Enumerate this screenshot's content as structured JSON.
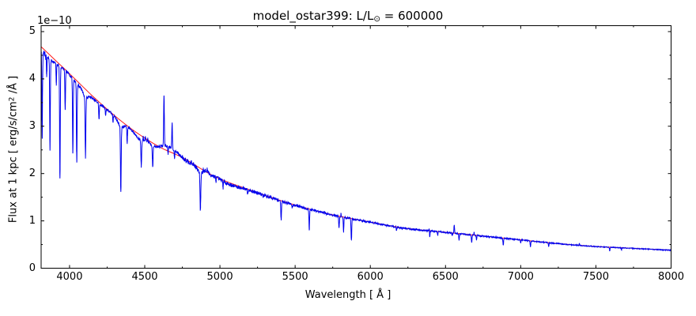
{
  "figure": {
    "background": "#ffffff"
  },
  "chart_data": {
    "type": "line",
    "title_parts": [
      "model_ostar399: L/L",
      "⊙",
      " = 600000"
    ],
    "xlabel": "Wavelength [ Å ]",
    "ylabel_parts": [
      "Flux at 1 kpc [ erg/s/cm",
      "2",
      " /Å ]"
    ],
    "y_offset_label": "1e−10",
    "xlim": [
      3811,
      8000
    ],
    "ylim": [
      0,
      5.125
    ],
    "xticks": [
      4000,
      4500,
      5000,
      5500,
      6000,
      6500,
      7000,
      7500,
      8000
    ],
    "yticks": [
      0,
      1,
      2,
      3,
      4,
      5
    ],
    "x_minor_ticks": [
      4250,
      4750,
      5250,
      5750,
      6250,
      6750,
      7250,
      7750
    ],
    "y_minor_ticks": [
      0.5,
      1.5,
      2.5,
      3.5,
      4.5
    ],
    "grid": false,
    "legend": null,
    "axes": {
      "spine_color": "#000000",
      "tick_color": "#000000",
      "text_color": "#000000",
      "tick_major_len": 4,
      "tick_minor_len": 2
    },
    "series": [
      {
        "name": "model spectrum",
        "color": "#0000ee",
        "width": 1.0
      },
      {
        "name": "continuum fit",
        "color": "#ff1a1a",
        "width": 1.0
      }
    ],
    "flux_unit_scale": "1e-10",
    "continuum_points": [
      [
        3811,
        4.68
      ],
      [
        4000,
        4.11
      ],
      [
        4200,
        3.5
      ],
      [
        4400,
        2.97
      ],
      [
        4600,
        2.56
      ],
      [
        4750,
        2.34
      ],
      [
        4958,
        1.95
      ],
      [
        5221,
        1.63
      ],
      [
        5484,
        1.35
      ],
      [
        5747,
        1.13
      ],
      [
        6010,
        0.97
      ],
      [
        6220,
        0.85
      ],
      [
        6500,
        0.76
      ],
      [
        6750,
        0.68
      ],
      [
        7000,
        0.6
      ],
      [
        7250,
        0.52
      ],
      [
        7500,
        0.46
      ],
      [
        7750,
        0.42
      ],
      [
        8000,
        0.38
      ]
    ],
    "absorption_lines": [
      [
        3818,
        1.75,
        2.2
      ],
      [
        3848,
        0.35,
        1.8
      ],
      [
        3870,
        1.91,
        2.2
      ],
      [
        3912,
        0.45,
        1.8
      ],
      [
        3936,
        2.39,
        2.2
      ],
      [
        3971,
        0.83,
        2.2
      ],
      [
        4022,
        1.58,
        2.2
      ],
      [
        4048,
        1.66,
        2.2
      ],
      [
        4106,
        1.27,
        2.4
      ],
      [
        4196,
        0.34,
        2.2
      ],
      [
        4240,
        0.15,
        1.8
      ],
      [
        4289,
        0.15,
        1.8
      ],
      [
        4341,
        1.38,
        2.4
      ],
      [
        4383,
        0.35,
        2.0
      ],
      [
        4477,
        0.55,
        2.4
      ],
      [
        4553,
        0.45,
        2.4
      ],
      [
        4655,
        0.15,
        1.8
      ],
      [
        4698,
        0.18,
        1.8
      ],
      [
        4870,
        0.78,
        2.6
      ],
      [
        4973,
        0.08,
        1.8
      ],
      [
        5021,
        0.14,
        1.8
      ],
      [
        5184,
        0.09,
        1.8
      ],
      [
        5288,
        0.06,
        1.8
      ],
      [
        5407,
        0.41,
        2.2
      ],
      [
        5480,
        0.06,
        1.8
      ],
      [
        5594,
        0.42,
        2.2
      ],
      [
        5792,
        0.25,
        2.0
      ],
      [
        5822,
        0.3,
        2.0
      ],
      [
        5874,
        0.46,
        2.3
      ],
      [
        6174,
        0.08,
        1.8
      ],
      [
        6395,
        0.13,
        1.9
      ],
      [
        6448,
        0.08,
        1.8
      ],
      [
        6545,
        0.05,
        1.8
      ],
      [
        6590,
        0.13,
        1.9
      ],
      [
        6674,
        0.16,
        2.0
      ],
      [
        6706,
        0.1,
        1.9
      ],
      [
        6884,
        0.15,
        2.0
      ],
      [
        7000,
        0.06,
        1.8
      ],
      [
        7065,
        0.12,
        2.0
      ],
      [
        7186,
        0.08,
        1.9
      ],
      [
        7592,
        0.08,
        1.9
      ],
      [
        7670,
        0.05,
        1.8
      ]
    ],
    "emission_lines": [
      [
        4490,
        0.09,
        1.6
      ],
      [
        4504,
        0.11,
        1.6
      ],
      [
        4520,
        0.07,
        1.6
      ],
      [
        4628,
        1.06,
        2.2
      ],
      [
        4682,
        0.55,
        2.2
      ],
      [
        4889,
        0.06,
        1.8
      ],
      [
        4916,
        0.06,
        1.8
      ],
      [
        5694,
        0.03,
        1.6
      ],
      [
        5805,
        0.06,
        1.6
      ],
      [
        6392,
        0.06,
        1.6
      ],
      [
        6558,
        0.17,
        2.2
      ],
      [
        6690,
        0.06,
        1.6
      ],
      [
        7390,
        0.04,
        1.6
      ]
    ],
    "broad_absorption": [
      [
        3830,
        0.05,
        30
      ],
      [
        3880,
        0.06,
        45
      ],
      [
        4060,
        0.05,
        35
      ],
      [
        4106,
        0.12,
        15
      ],
      [
        4150,
        0.04,
        40
      ],
      [
        4341,
        0.12,
        18
      ],
      [
        4470,
        0.09,
        30
      ],
      [
        4560,
        0.05,
        22
      ],
      [
        4870,
        0.1,
        18
      ],
      [
        5080,
        0.03,
        50
      ]
    ],
    "broad_emission": [
      [
        4650,
        0.1,
        35
      ],
      [
        4708,
        0.05,
        22
      ],
      [
        4900,
        0.04,
        15
      ]
    ],
    "noise": {
      "seed": 7,
      "jitter_region": [
        3850,
        4750
      ],
      "jitter_amp": 0.055,
      "jitter_bias": 0.68,
      "base_amp_frac": 0.022,
      "base_bias": 0.58
    }
  }
}
